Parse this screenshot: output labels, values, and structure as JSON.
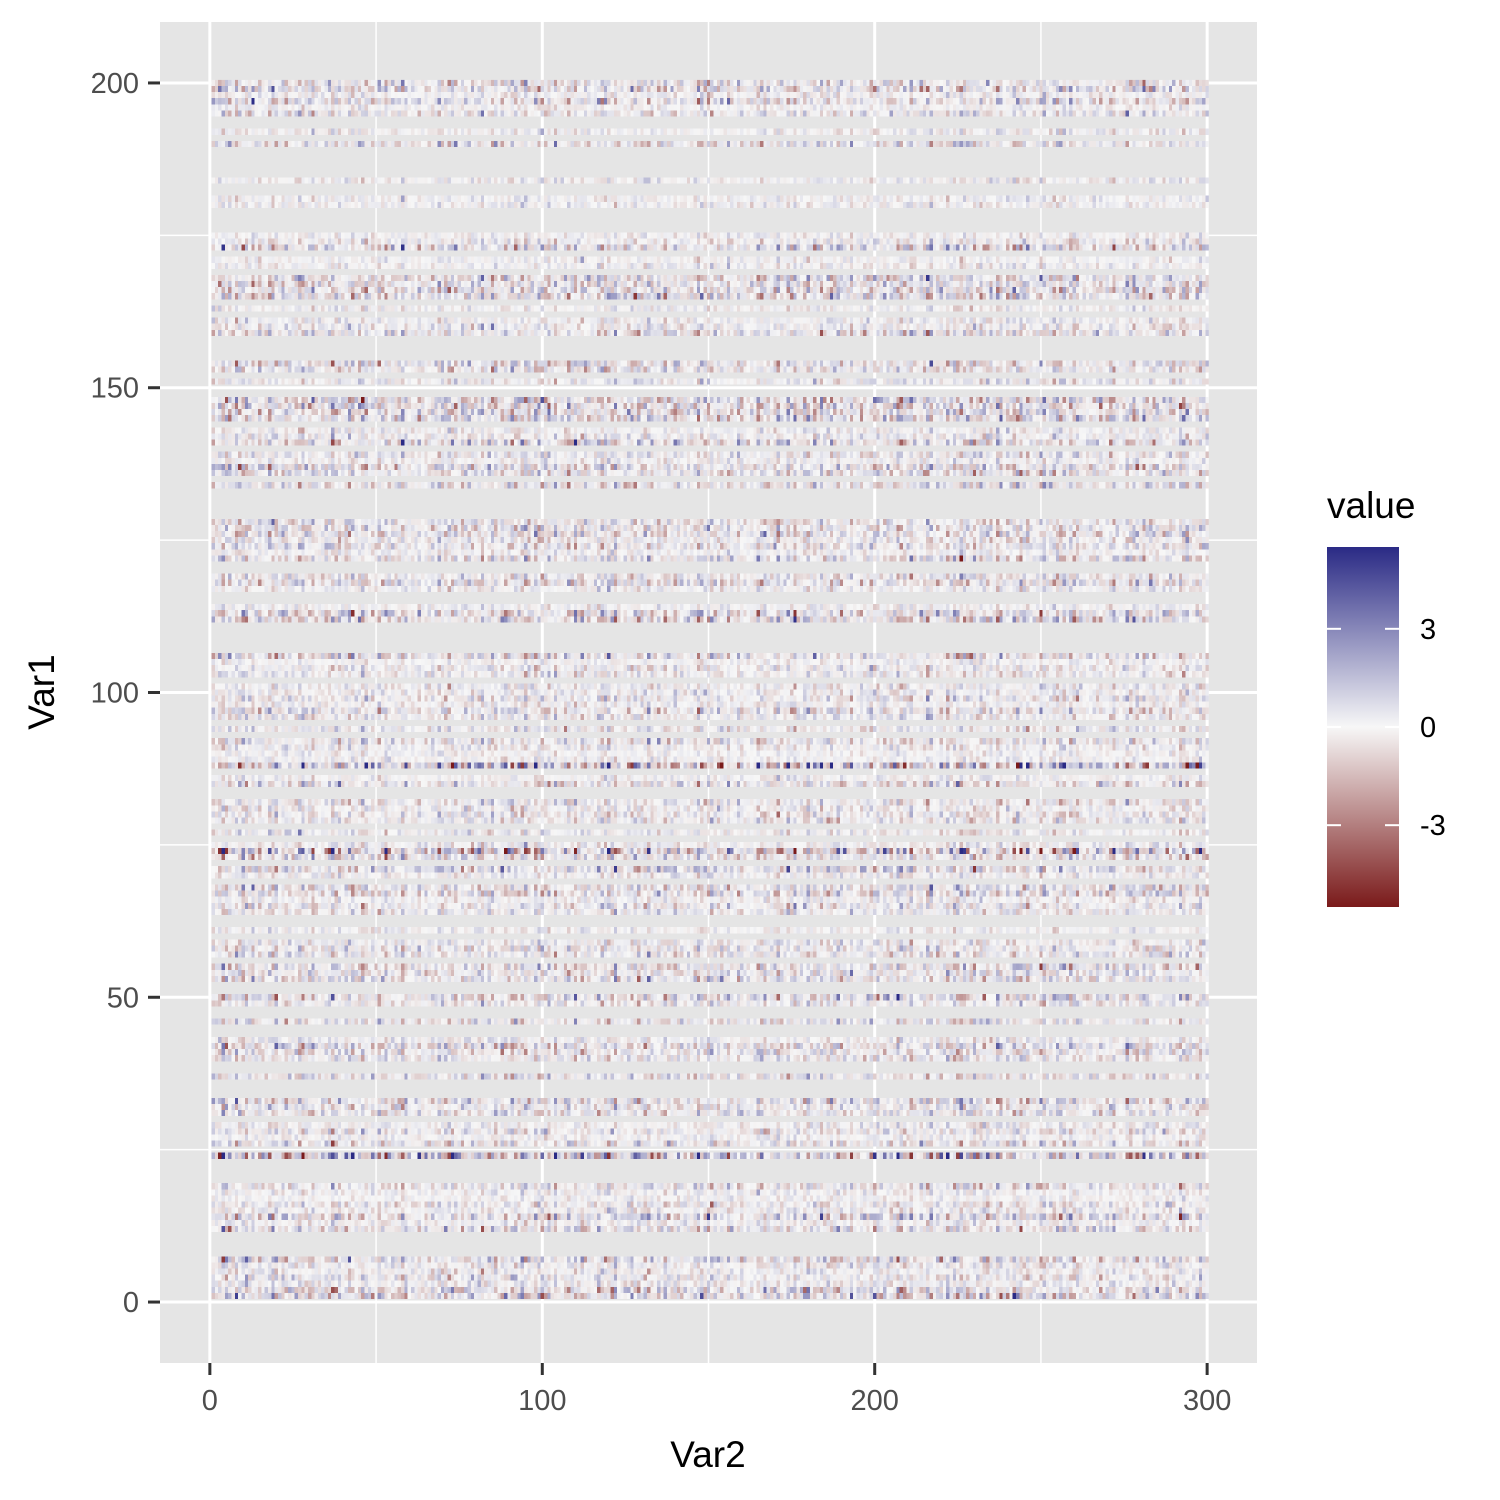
{
  "chart_data": {
    "type": "heatmap",
    "xlabel": "Var2",
    "ylabel": "Var1",
    "x_ticks": [
      0,
      100,
      200,
      300
    ],
    "y_ticks": [
      0,
      50,
      100,
      150,
      200
    ],
    "xlim": [
      -15,
      315
    ],
    "ylim": [
      -10,
      210
    ],
    "grid": true,
    "dims": {
      "cols": 300,
      "rows": 200
    },
    "missing_rows": [
      8,
      9,
      10,
      11,
      20,
      21,
      22,
      23,
      25,
      30,
      34,
      35,
      36,
      38,
      39,
      44,
      45,
      47,
      48,
      51,
      52,
      56,
      60,
      62,
      63,
      69,
      72,
      76,
      78,
      83,
      84,
      87,
      93,
      95,
      102,
      107,
      108,
      109,
      110,
      111,
      115,
      116,
      120,
      121,
      129,
      130,
      131,
      132,
      133,
      135,
      140,
      144,
      149,
      150,
      152,
      155,
      156,
      157,
      158,
      162,
      164,
      169,
      172,
      176,
      177,
      178,
      179,
      182,
      183,
      185,
      186,
      187,
      188,
      189,
      191,
      193,
      194
    ],
    "value_scale": {
      "min": -5.5,
      "max": 5.5
    },
    "legend": {
      "title": "value",
      "ticks": [
        3,
        0,
        -3
      ],
      "position": "right",
      "colors": {
        "low": "#7a1a1a",
        "mid": "#f7f7f7",
        "high": "#2a2a85"
      }
    },
    "panel_background": "#e5e5e5",
    "grid_color": "#ffffff"
  }
}
